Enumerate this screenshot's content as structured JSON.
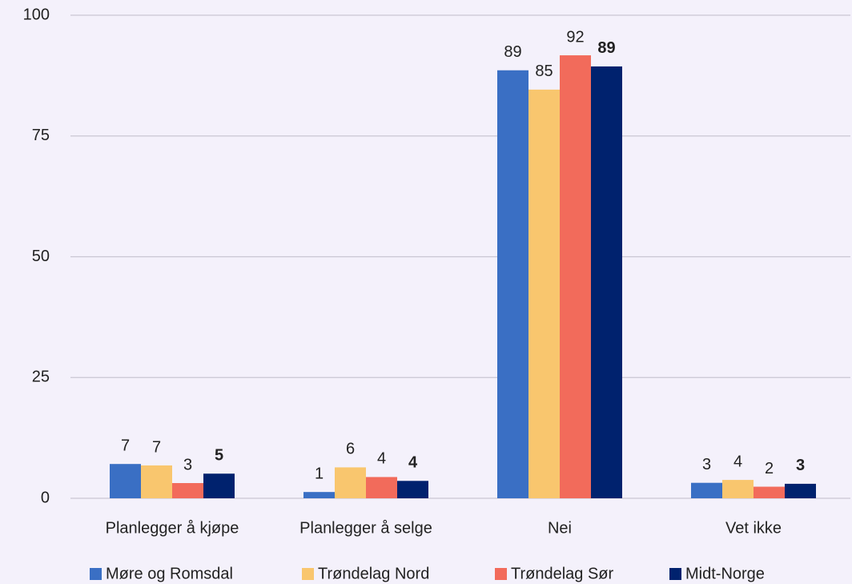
{
  "chart_data": {
    "type": "bar",
    "categories": [
      "Planlegger å kjøpe",
      "Planlegger å selge",
      "Nei",
      "Vet ikke"
    ],
    "series": [
      {
        "name": "Møre og Romsdal",
        "color": "#3a6fc4",
        "values": [
          7.1,
          1.3,
          88.6,
          3.2
        ],
        "value_labels": [
          "7",
          "1",
          "89",
          "3"
        ],
        "label_bold": false
      },
      {
        "name": "Trøndelag Nord",
        "color": "#f9c66e",
        "values": [
          6.8,
          6.4,
          84.6,
          3.8
        ],
        "value_labels": [
          "7",
          "6",
          "85",
          "4"
        ],
        "label_bold": false
      },
      {
        "name": "Trøndelag Sør",
        "color": "#f26b5b",
        "values": [
          3.15,
          4.4,
          91.7,
          2.4
        ],
        "value_labels": [
          "3",
          "4",
          "92",
          "2"
        ],
        "label_bold": false
      },
      {
        "name": "Midt-Norge",
        "color": "#00226e",
        "values": [
          5.1,
          3.6,
          89.4,
          3.0
        ],
        "value_labels": [
          "5",
          "4",
          "89",
          "3"
        ],
        "label_bold": true
      }
    ],
    "ylim": [
      0,
      100
    ],
    "yticks": [
      0,
      25,
      50,
      75,
      100
    ],
    "grid": true,
    "legend": "bottom"
  }
}
